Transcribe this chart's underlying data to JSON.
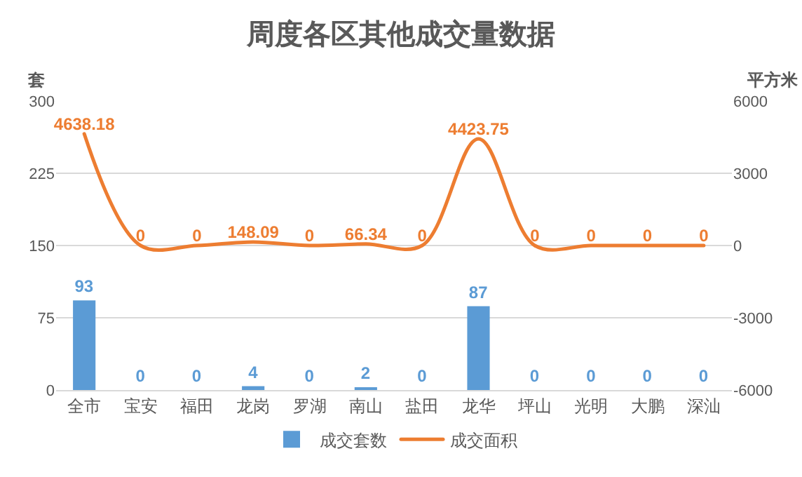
{
  "chart_data": {
    "type": "bar",
    "title": "周度各区其他成交量数据",
    "ylabel": "套",
    "y2label": "平方米",
    "categories": [
      "全市",
      "宝安",
      "福田",
      "龙岗",
      "罗湖",
      "南山",
      "盐田",
      "龙华",
      "坪山",
      "光明",
      "大鹏",
      "深汕"
    ],
    "series": [
      {
        "name": "成交套数",
        "color": "#5b9bd5",
        "values": [
          93,
          0,
          0,
          4,
          0,
          2,
          0,
          87,
          0,
          0,
          0,
          0
        ]
      },
      {
        "name": "成交面积",
        "type": "line",
        "axis": "y2",
        "color": "#ed7d31",
        "marker": "none",
        "values": [
          4638.18,
          0,
          0,
          148.09,
          0,
          66.34,
          0,
          4423.75,
          0,
          0,
          0,
          0
        ]
      }
    ],
    "ylim": [
      0,
      300
    ],
    "yticks": [
      0,
      75,
      150,
      225,
      300
    ],
    "y2lim": [
      -6000,
      6000
    ],
    "y2ticks": [
      -6000,
      -3000,
      0,
      3000,
      6000
    ],
    "data_labels": true,
    "grid": "y",
    "legend": "bottom"
  }
}
